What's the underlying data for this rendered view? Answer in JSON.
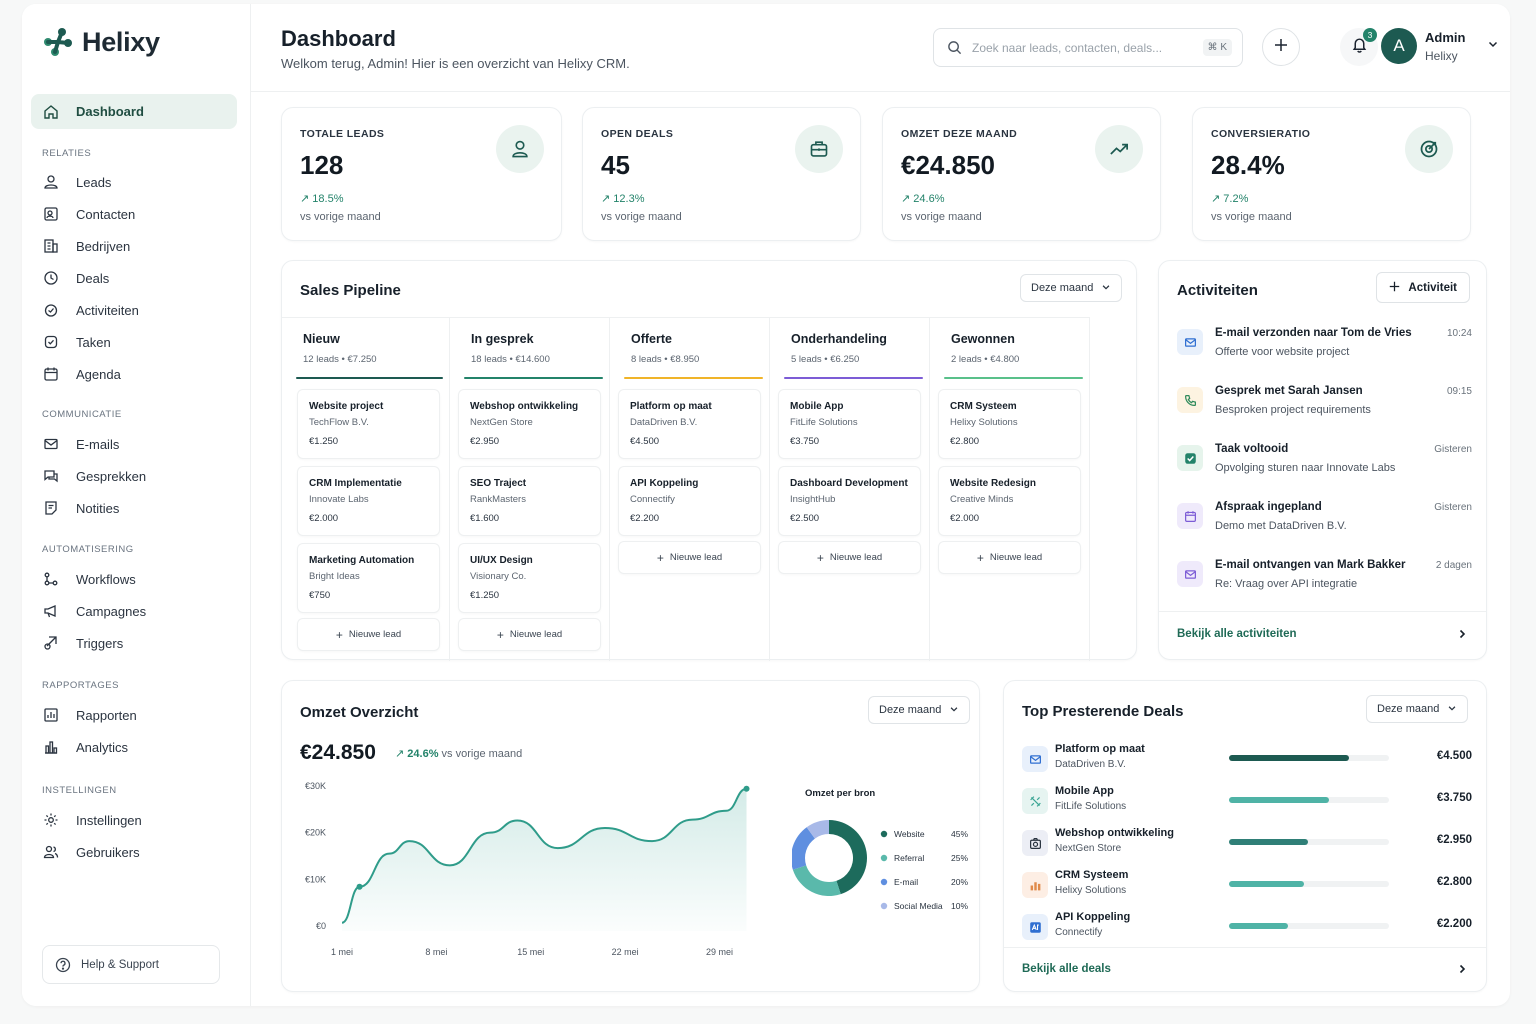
{
  "app": {
    "name": "Helixy"
  },
  "colors": {
    "brand": "#1d5a51",
    "accent": "#23836a",
    "teal": "#4fb3a6"
  },
  "sidebar": {
    "active": {
      "label": "Dashboard",
      "icon": "home-icon"
    },
    "sections": [
      {
        "title": "RELATIES",
        "items": [
          {
            "label": "Leads",
            "icon": "user-icon"
          },
          {
            "label": "Contacten",
            "icon": "contact-card-icon"
          },
          {
            "label": "Bedrijven",
            "icon": "building-icon"
          },
          {
            "label": "Deals",
            "icon": "deal-icon"
          },
          {
            "label": "Activiteiten",
            "icon": "activity-icon"
          },
          {
            "label": "Taken",
            "icon": "check-circle-icon"
          },
          {
            "label": "Agenda",
            "icon": "calendar-icon"
          }
        ]
      },
      {
        "title": "COMMUNICATIE",
        "items": [
          {
            "label": "E-mails",
            "icon": "mail-icon"
          },
          {
            "label": "Gesprekken",
            "icon": "chat-icon"
          },
          {
            "label": "Notities",
            "icon": "note-icon"
          }
        ]
      },
      {
        "title": "AUTOMATISERING",
        "items": [
          {
            "label": "Workflows",
            "icon": "workflow-icon"
          },
          {
            "label": "Campagnes",
            "icon": "megaphone-icon"
          },
          {
            "label": "Triggers",
            "icon": "trigger-icon"
          }
        ]
      },
      {
        "title": "RAPPORTAGES",
        "items": [
          {
            "label": "Rapporten",
            "icon": "report-icon"
          },
          {
            "label": "Analytics",
            "icon": "analytics-icon"
          }
        ]
      },
      {
        "title": "INSTELLINGEN",
        "items": [
          {
            "label": "Instellingen",
            "icon": "gear-icon"
          },
          {
            "label": "Gebruikers",
            "icon": "users-icon"
          }
        ]
      }
    ],
    "help": "Help & Support"
  },
  "header": {
    "title": "Dashboard",
    "subtitle": "Welkom terug, Admin! Hier is een overzicht van Helixy CRM.",
    "search_placeholder": "Zoek naar leads, contacten, deals...",
    "shortcut": "⌘ K",
    "notifications": "3",
    "avatar_initial": "A",
    "user_name": "Admin",
    "user_org": "Helixy"
  },
  "kpis": [
    {
      "label": "TOTALE LEADS",
      "value": "128",
      "delta": "18.5%",
      "vs": "vs vorige maand",
      "icon": "user-icon"
    },
    {
      "label": "OPEN DEALS",
      "value": "45",
      "delta": "12.3%",
      "vs": "vs vorige maand",
      "icon": "briefcase-icon"
    },
    {
      "label": "OMZET DEZE MAAND",
      "value": "€24.850",
      "delta": "24.6%",
      "vs": "vs vorige maand",
      "icon": "trend-up-icon"
    },
    {
      "label": "CONVERSIERATIO",
      "value": "28.4%",
      "delta": "7.2%",
      "vs": "vs vorige maand",
      "icon": "target-icon"
    }
  ],
  "pipeline": {
    "title": "Sales Pipeline",
    "period": "Deze maand",
    "new_lead": "Nieuwe lead",
    "columns": [
      {
        "title": "Nieuw",
        "meta": "12 leads • €7.250",
        "color": "#1d5a51",
        "deals": [
          {
            "title": "Website project",
            "company": "TechFlow B.V.",
            "amount": "€1.250"
          },
          {
            "title": "CRM Implementatie",
            "company": "Innovate Labs",
            "amount": "€2.000"
          },
          {
            "title": "Marketing Automation",
            "company": "Bright Ideas",
            "amount": "€750"
          }
        ]
      },
      {
        "title": "In gesprek",
        "meta": "18 leads • €14.600",
        "color": "#23836a",
        "deals": [
          {
            "title": "Webshop ontwikkeling",
            "company": "NextGen Store",
            "amount": "€2.950"
          },
          {
            "title": "SEO Traject",
            "company": "RankMasters",
            "amount": "€1.600"
          },
          {
            "title": "UI/UX Design",
            "company": "Visionary Co.",
            "amount": "€1.250"
          }
        ]
      },
      {
        "title": "Offerte",
        "meta": "8 leads • €8.950",
        "color": "#f0b429",
        "deals": [
          {
            "title": "Platform op maat",
            "company": "DataDriven B.V.",
            "amount": "€4.500"
          },
          {
            "title": "API Koppeling",
            "company": "Connectify",
            "amount": "€2.200"
          }
        ]
      },
      {
        "title": "Onderhandeling",
        "meta": "5 leads • €6.250",
        "color": "#7c5cd6",
        "deals": [
          {
            "title": "Mobile App",
            "company": "FitLife Solutions",
            "amount": "€3.750"
          },
          {
            "title": "Dashboard Development",
            "company": "InsightHub",
            "amount": "€2.500"
          }
        ]
      },
      {
        "title": "Gewonnen",
        "meta": "2 leads • €4.800",
        "color": "#59c08a",
        "deals": [
          {
            "title": "CRM Systeem",
            "company": "Helixy Solutions",
            "amount": "€2.800"
          },
          {
            "title": "Website Redesign",
            "company": "Creative Minds",
            "amount": "€2.000"
          }
        ]
      }
    ]
  },
  "activities": {
    "title": "Activiteiten",
    "add_label": "Activiteit",
    "items": [
      {
        "title": "E-mail verzonden naar Tom de Vries",
        "sub": "Offerte voor website project",
        "time": "10:24",
        "icon": "mail-icon",
        "bg": "#e8f0fb",
        "fg": "#2f6fd1"
      },
      {
        "title": "Gesprek met Sarah Jansen",
        "sub": "Besproken project requirements",
        "time": "09:15",
        "icon": "phone-icon",
        "bg": "#fdf3e1",
        "fg": "#2f8a5b"
      },
      {
        "title": "Taak voltooid",
        "sub": "Opvolging sturen naar Innovate Labs",
        "time": "Gisteren",
        "icon": "check-icon",
        "bg": "#e6f4ec",
        "fg": "#23836a"
      },
      {
        "title": "Afspraak ingepland",
        "sub": "Demo met DataDriven B.V.",
        "time": "Gisteren",
        "icon": "calendar-icon",
        "bg": "#efeafb",
        "fg": "#7c5cd6"
      },
      {
        "title": "E-mail ontvangen van Mark Bakker",
        "sub": "Re: Vraag over API integratie",
        "time": "2 dagen",
        "icon": "mail-icon",
        "bg": "#efeafb",
        "fg": "#7c5cd6"
      }
    ],
    "link": "Bekijk alle activiteiten"
  },
  "revenue": {
    "title": "Omzet Overzicht",
    "period": "Deze maand",
    "total": "€24.850",
    "delta": "24.6%",
    "vs": "vs vorige maand",
    "donut_title": "Omzet per bron"
  },
  "chart_data": [
    {
      "type": "area",
      "y_ticks": [
        "€0",
        "€10K",
        "€20K",
        "€30K"
      ],
      "ylim": [
        0,
        30000
      ],
      "x_ticks": [
        {
          "label": "1 mei",
          "day": 1
        },
        {
          "label": "8 mei",
          "day": 8
        },
        {
          "label": "15 mei",
          "day": 15
        },
        {
          "label": "22 mei",
          "day": 22
        },
        {
          "label": "29 mei",
          "day": 29
        }
      ],
      "points": [
        {
          "day": 1,
          "y": 700
        },
        {
          "day": 2.3,
          "y": 8400
        },
        {
          "day": 4.5,
          "y": 15500
        },
        {
          "day": 6,
          "y": 18200
        },
        {
          "day": 9,
          "y": 13000
        },
        {
          "day": 12,
          "y": 20000
        },
        {
          "day": 14,
          "y": 22600
        },
        {
          "day": 17,
          "y": 16700
        },
        {
          "day": 20.5,
          "y": 21000
        },
        {
          "day": 24,
          "y": 18200
        },
        {
          "day": 27,
          "y": 22800
        },
        {
          "day": 29.5,
          "y": 24700
        },
        {
          "day": 31,
          "y": 29400
        }
      ]
    },
    {
      "type": "pie",
      "title": "Omzet per bron",
      "slices": [
        {
          "label": "Website",
          "pct_label": "45%",
          "value": 45,
          "color": "#1d6b5c"
        },
        {
          "label": "Referral",
          "pct_label": "25%",
          "value": 25,
          "color": "#5ab9ab"
        },
        {
          "label": "E-mail",
          "pct_label": "20%",
          "value": 20,
          "color": "#5f8fe0"
        },
        {
          "label": "Social Media",
          "pct_label": "10%",
          "value": 10,
          "color": "#a8b9e8"
        }
      ]
    }
  ],
  "top_deals": {
    "title": "Top Presterende Deals",
    "period": "Deze maand",
    "items": [
      {
        "name": "Platform op maat",
        "company": "DataDriven B.V.",
        "amount": "€4.500",
        "value": 4500,
        "icon": "mail-icon",
        "bg": "#e8f0fb",
        "fg": "#2f6fd1",
        "bar": "#1d5a51"
      },
      {
        "name": "Mobile App",
        "company": "FitLife Solutions",
        "amount": "€3.750",
        "value": 3750,
        "icon": "fitness-icon",
        "bg": "#e6f4f1",
        "fg": "#3aa594",
        "bar": "#4fb3a6"
      },
      {
        "name": "Webshop ontwikkeling",
        "company": "NextGen Store",
        "amount": "€2.950",
        "value": 2950,
        "icon": "camera-icon",
        "bg": "#eceef5",
        "fg": "#2a3440",
        "bar": "#2f7f77"
      },
      {
        "name": "CRM Systeem",
        "company": "Helixy Solutions",
        "amount": "€2.800",
        "value": 2800,
        "icon": "chart-bars-icon",
        "bg": "#fdeee4",
        "fg": "#e08a4a",
        "bar": "#4fb3a6"
      },
      {
        "name": "API Koppeling",
        "company": "Connectify",
        "amount": "€2.200",
        "value": 2200,
        "icon": "api-icon",
        "bg": "#e8f0fb",
        "fg": "#2f6fd1",
        "bar": "#4fb3a6"
      }
    ],
    "max_value": 6000,
    "link": "Bekijk alle deals"
  }
}
